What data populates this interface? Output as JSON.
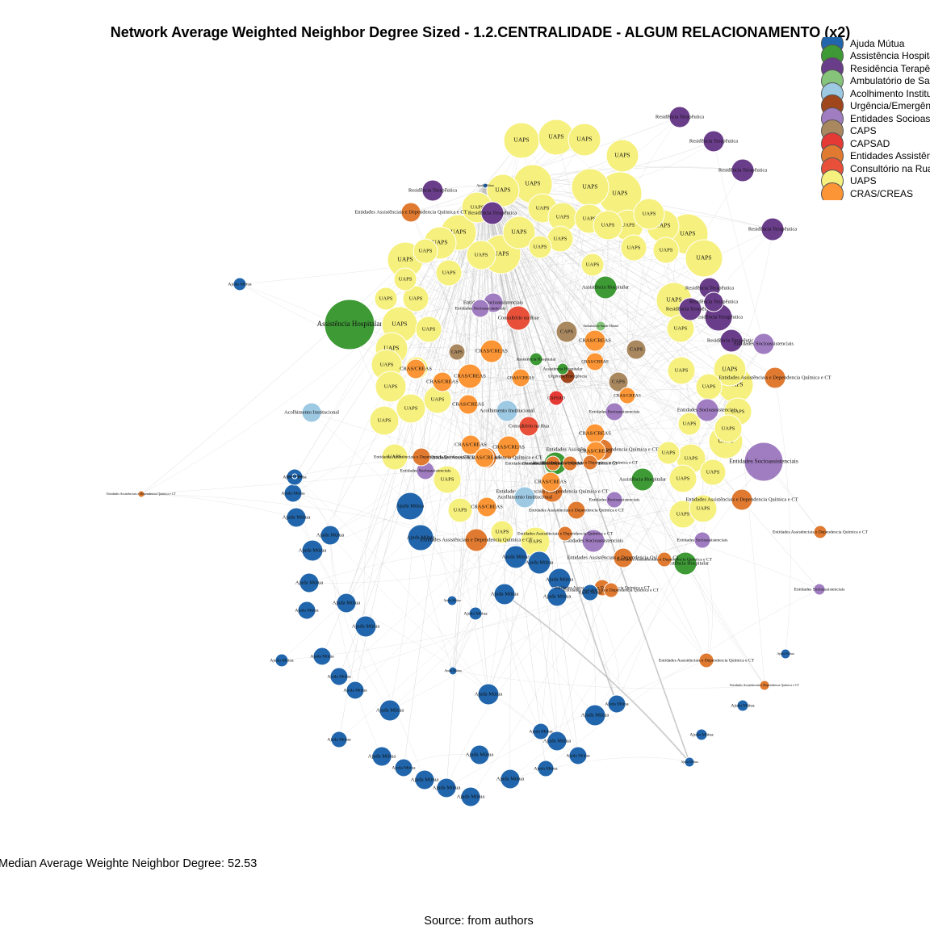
{
  "title": "Network Average Weighted Neighbor Degree Sized - 1.2.CENTRALIDADE - ALGUM RELACIONAMENTO (x2)",
  "median_text": "Median Average Weighte Neighbor Degree: 52.53",
  "source_text": "Source: from authors",
  "legend": [
    {
      "label": "Ajuda Mútua",
      "color": "#2166ac"
    },
    {
      "label": "Assistência Hospitalar",
      "color": "#3d9a35"
    },
    {
      "label": "Residência Terapêutica",
      "color": "#6a3d8a"
    },
    {
      "label": "Ambulatório de Saúde Mental",
      "color": "#86c47c"
    },
    {
      "label": "Acolhimento Institucional",
      "color": "#9ec9e2"
    },
    {
      "label": "Urgência/Emergência",
      "color": "#a0461c"
    },
    {
      "label": "Entidades Socioassistenciais",
      "color": "#a07cc0"
    },
    {
      "label": "CAPS",
      "color": "#a98860"
    },
    {
      "label": "CAPSAD",
      "color": "#e53935"
    },
    {
      "label": "Entidades Assistênciais e Dependencia Química e CT",
      "color": "#e07a30"
    },
    {
      "label": "Consultório na Rua",
      "color": "#e8503a"
    },
    {
      "label": "UAPS",
      "color": "#f6f07e"
    },
    {
      "label": "CRAS/CREAS",
      "color": "#fb9535"
    }
  ],
  "node_labels": {
    "uaps": "UAPS",
    "ajuda": "Ajuda Mútua",
    "res": "Residência Terapêutica",
    "socio": "Entidades Socioassistenciais",
    "dep": "Entidades Assistênciais e Dependencia Química e CT",
    "cras": "CRAS/CREAS",
    "caps": "CAPS",
    "capsad": "CAPSAD",
    "hosp": "Assistência Hospitalar",
    "acol": "Acolhimento Institucional",
    "rua": "Consultório na Rua",
    "urg": "Urgência/Emergência",
    "amb": "Ambulatório Saúde Mental"
  },
  "network": {
    "nodes": [
      {
        "t": "uaps",
        "lbl": "UAPS"
      },
      {
        "t": "uaps",
        "lbl": "UAPS"
      },
      {
        "t": "uaps",
        "lbl": "UAPS"
      },
      {
        "t": "uaps",
        "lbl": "UAPS"
      },
      {
        "t": "uaps",
        "lbl": "UAPS"
      },
      {
        "t": "uaps",
        "lbl": "UAPS"
      },
      {
        "t": "uaps",
        "lbl": "UAPS"
      },
      {
        "t": "uaps",
        "lbl": "UAPS"
      },
      {
        "t": "uaps",
        "lbl": "UAPS"
      },
      {
        "t": "uaps",
        "lbl": "UAPS"
      },
      {
        "t": "uaps",
        "lbl": "UAPS"
      },
      {
        "t": "uaps",
        "lbl": "UAPS"
      },
      {
        "t": "uaps",
        "lbl": "UAPS"
      },
      {
        "t": "uaps",
        "lbl": "UAPS"
      },
      {
        "t": "uaps",
        "lbl": "UAPS"
      },
      {
        "t": "uaps",
        "lbl": "UAPS"
      },
      {
        "t": "uaps",
        "lbl": "UAPS"
      },
      {
        "t": "uaps",
        "lbl": "UAPS"
      },
      {
        "t": "uaps",
        "lbl": "UAPS"
      },
      {
        "t": "uaps",
        "lbl": "UAPS"
      },
      {
        "t": "uaps",
        "lbl": "UAPS"
      },
      {
        "t": "uaps",
        "lbl": "UAPS"
      },
      {
        "t": "uaps",
        "lbl": "UAPS"
      },
      {
        "t": "uaps",
        "lbl": "UAPS"
      },
      {
        "t": "uaps",
        "lbl": "UAPS"
      },
      {
        "t": "uaps",
        "lbl": "UAPS"
      },
      {
        "t": "uaps",
        "lbl": "UAPS"
      },
      {
        "t": "uaps",
        "lbl": "UAPS"
      },
      {
        "t": "uaps",
        "lbl": "UAPS"
      },
      {
        "t": "uaps",
        "lbl": "UAPS"
      },
      {
        "t": "uaps",
        "lbl": "UAPS"
      },
      {
        "t": "uaps",
        "lbl": "UAPS"
      },
      {
        "t": "uaps",
        "lbl": "UAPS"
      },
      {
        "t": "uaps",
        "lbl": "UAPS"
      },
      {
        "t": "uaps",
        "lbl": "UAPS"
      },
      {
        "t": "uaps",
        "lbl": "UAPS"
      },
      {
        "t": "uaps",
        "lbl": "UAPS"
      },
      {
        "t": "uaps",
        "lbl": "UAPS"
      },
      {
        "t": "uaps",
        "lbl": "UAPS"
      },
      {
        "t": "uaps",
        "lbl": "UAPS"
      },
      {
        "t": "uaps",
        "lbl": "UAPS"
      },
      {
        "t": "uaps",
        "lbl": "UAPS"
      },
      {
        "t": "uaps",
        "lbl": "UAPS"
      },
      {
        "t": "uaps",
        "lbl": "UAPS"
      },
      {
        "t": "uaps",
        "lbl": "UAPS"
      },
      {
        "t": "uaps",
        "lbl": "UAPS"
      },
      {
        "t": "uaps",
        "lbl": "UAPS"
      },
      {
        "t": "uaps",
        "lbl": "UAPS"
      },
      {
        "t": "uaps",
        "lbl": "UAPS"
      },
      {
        "t": "uaps",
        "lbl": "UAPS"
      },
      {
        "t": "uaps",
        "lbl": "UAPS"
      },
      {
        "t": "uaps",
        "lbl": "UAPS"
      },
      {
        "t": "uaps",
        "lbl": "UAPS"
      },
      {
        "t": "uaps",
        "lbl": "UAPS"
      },
      {
        "t": "uaps",
        "lbl": "UAPS"
      },
      {
        "t": "uaps",
        "lbl": "UAPS"
      },
      {
        "t": "uaps",
        "lbl": "UAPS"
      },
      {
        "t": "uaps",
        "lbl": "UAPS"
      },
      {
        "t": "uaps",
        "lbl": "UAPS"
      },
      {
        "t": "uaps",
        "lbl": "UAPS"
      },
      {
        "t": "uaps",
        "lbl": "UAPS"
      },
      {
        "t": "uaps",
        "lbl": "UAPS"
      },
      {
        "t": "uaps",
        "lbl": "UAPS"
      },
      {
        "t": "uaps",
        "lbl": "UAPS"
      },
      {
        "t": "res",
        "lbl": "Residência Terapêutica"
      },
      {
        "t": "res",
        "lbl": "Residência Terapêutica"
      },
      {
        "t": "res",
        "lbl": "Residência Terapêutica"
      },
      {
        "t": "res",
        "lbl": "Residência Terapêutica"
      },
      {
        "t": "res",
        "lbl": "Residência Terapêutica"
      },
      {
        "t": "res",
        "lbl": "Residência Terapêutica"
      },
      {
        "t": "res",
        "lbl": "Residência Terapêutica"
      },
      {
        "t": "res",
        "lbl": "Residência Terapêutica"
      },
      {
        "t": "res",
        "lbl": "Residência Terapêutica"
      },
      {
        "t": "res",
        "lbl": "Residência Terapêutica"
      },
      {
        "t": "res",
        "lbl": "Residência Terapêutica"
      },
      {
        "t": "hosp",
        "lbl": "Assistência Hospitalar"
      },
      {
        "t": "hosp",
        "lbl": "Assistência Hospitalar"
      },
      {
        "t": "hosp",
        "lbl": "Assistência Hospitalar"
      },
      {
        "t": "hosp",
        "lbl": "Assistência Hospitalar"
      },
      {
        "t": "hosp",
        "lbl": "Assistência Hospitalar"
      },
      {
        "t": "hosp",
        "lbl": "Assistência Hospitalar"
      },
      {
        "t": "hosp",
        "lbl": "Assistência Hospitalar"
      },
      {
        "t": "socio",
        "lbl": "Entidades Socioassistenciais"
      },
      {
        "t": "socio",
        "lbl": "Entidades Socioassistenciais"
      },
      {
        "t": "socio",
        "lbl": "Entidades Socioassistenciais"
      },
      {
        "t": "socio",
        "lbl": "Entidades Socioassistenciais"
      },
      {
        "t": "socio",
        "lbl": "Entidades Socioassistenciais"
      },
      {
        "t": "socio",
        "lbl": "Entidades Socioassistenciais"
      },
      {
        "t": "socio",
        "lbl": "Entidades Socioassistenciais"
      },
      {
        "t": "socio",
        "lbl": "Entidades Socioassistenciais"
      },
      {
        "t": "socio",
        "lbl": "Entidades Socioassistenciais"
      },
      {
        "t": "socio",
        "lbl": "Entidades Socioassistenciais"
      },
      {
        "t": "socio",
        "lbl": "Entidades Socioassistenciais"
      },
      {
        "t": "dep",
        "lbl": "Entidades Assistênciais e Dependencia Química e CT"
      },
      {
        "t": "dep",
        "lbl": "Entidades Assistênciais e Dependencia Química e CT"
      },
      {
        "t": "dep",
        "lbl": "Entidades Assistênciais e Dependencia Química e CT"
      },
      {
        "t": "dep",
        "lbl": "Entidades Assistênciais e Dependencia Química e CT"
      },
      {
        "t": "dep",
        "lbl": "Entidades Assistênciais e Dependencia Química e CT"
      },
      {
        "t": "dep",
        "lbl": "Entidades Assistênciais e Dependencia Química e CT"
      },
      {
        "t": "dep",
        "lbl": "Entidades Assistênciais e Dependencia Química e CT"
      },
      {
        "t": "dep",
        "lbl": "Entidades Assistênciais e Dependencia Química e CT"
      },
      {
        "t": "dep",
        "lbl": "Entidades Assistênciais e Dependencia Química e CT"
      },
      {
        "t": "dep",
        "lbl": "Entidades Assistênciais e Dependencia Química e CT"
      },
      {
        "t": "dep",
        "lbl": "Entidades Assistênciais e Dependencia Química e CT"
      },
      {
        "t": "dep",
        "lbl": "Entidades Assistênciais e Dependencia Química e CT"
      },
      {
        "t": "dep",
        "lbl": "Entidades Assistênciais e Dependencia Química e CT"
      },
      {
        "t": "dep",
        "lbl": "Entidades Assistênciais e Dependencia Química e CT"
      },
      {
        "t": "dep",
        "lbl": "Entidades Assistênciais e Dependencia Química e CT"
      },
      {
        "t": "dep",
        "lbl": "Entidades Assistênciais e Dependencia Química e CT"
      },
      {
        "t": "dep",
        "lbl": "Entidades Assistênciais e Dependencia Química e CT"
      },
      {
        "t": "dep",
        "lbl": "Entidades Assistênciais e Dependencia Química e CT"
      },
      {
        "t": "dep",
        "lbl": "Entidades Assistênciais e Dependencia Química e CT"
      },
      {
        "t": "dep",
        "lbl": "Entidades Assistênciais e Dependencia Química e CT"
      },
      {
        "t": "dep",
        "lbl": "Entidades Assistênciais e Dependencia Química e CT"
      },
      {
        "t": "cras",
        "lbl": "CRAS/CREAS"
      },
      {
        "t": "cras",
        "lbl": "CRAS/CREAS"
      },
      {
        "t": "cras",
        "lbl": "CRAS/CREAS"
      },
      {
        "t": "cras",
        "lbl": "CRAS/CREAS"
      },
      {
        "t": "cras",
        "lbl": "CRAS/CREAS"
      },
      {
        "t": "cras",
        "lbl": "CRAS/CREAS"
      },
      {
        "t": "cras",
        "lbl": "CRAS/CREAS"
      },
      {
        "t": "cras",
        "lbl": "CRAS/CREAS"
      },
      {
        "t": "cras",
        "lbl": "CRAS/CREAS"
      },
      {
        "t": "cras",
        "lbl": "CRAS/CREAS"
      },
      {
        "t": "cras",
        "lbl": "CRAS/CREAS"
      },
      {
        "t": "cras",
        "lbl": "CRAS/CREAS"
      },
      {
        "t": "cras",
        "lbl": "CRAS/CREAS"
      },
      {
        "t": "cras",
        "lbl": "CRAS/CREAS"
      },
      {
        "t": "cras",
        "lbl": "CRAS/CREAS"
      },
      {
        "t": "cras",
        "lbl": "CRAS/CREAS"
      },
      {
        "t": "caps",
        "lbl": "CAPS"
      },
      {
        "t": "caps",
        "lbl": "CAPS"
      },
      {
        "t": "caps",
        "lbl": "CAPS"
      },
      {
        "t": "caps",
        "lbl": "CAPS"
      },
      {
        "t": "capsad",
        "lbl": "CAPSAD"
      },
      {
        "t": "acol",
        "lbl": "Acolhimento Institucional"
      },
      {
        "t": "acol",
        "lbl": "Acolhimento Institucional"
      },
      {
        "t": "acol",
        "lbl": "Acolhimento Institucional"
      },
      {
        "t": "rua",
        "lbl": "Consultório na Rua"
      },
      {
        "t": "rua",
        "lbl": "Consultório na Rua"
      },
      {
        "t": "urg",
        "lbl": "Urgência/Emergência"
      },
      {
        "t": "amb",
        "lbl": "Ambulatório Saúde Mental"
      },
      {
        "t": "ajuda",
        "lbl": "Ajuda Mútua"
      },
      {
        "t": "ajuda",
        "lbl": "Ajuda Mútua"
      },
      {
        "t": "ajuda",
        "lbl": "Ajuda Mútua"
      },
      {
        "t": "ajuda",
        "lbl": "Ajuda Mútua"
      },
      {
        "t": "ajuda",
        "lbl": "Ajuda Mútua"
      },
      {
        "t": "ajuda",
        "lbl": "Ajuda Mútua"
      },
      {
        "t": "ajuda",
        "lbl": "Ajuda Mútua"
      },
      {
        "t": "ajuda",
        "lbl": "Ajuda Mútua"
      },
      {
        "t": "ajuda",
        "lbl": "Ajuda Mútua"
      },
      {
        "t": "ajuda",
        "lbl": "Ajuda Mútua"
      },
      {
        "t": "ajuda",
        "lbl": "Ajuda Mútua"
      },
      {
        "t": "ajuda",
        "lbl": "Ajuda Mútua"
      },
      {
        "t": "ajuda",
        "lbl": "Ajuda Mútua"
      },
      {
        "t": "ajuda",
        "lbl": "Ajuda Mútua"
      },
      {
        "t": "ajuda",
        "lbl": "Ajuda Mútua"
      },
      {
        "t": "ajuda",
        "lbl": "Ajuda Mútua"
      },
      {
        "t": "ajuda",
        "lbl": "Ajuda Mútua"
      },
      {
        "t": "ajuda",
        "lbl": "Ajuda Mútua"
      },
      {
        "t": "ajuda",
        "lbl": "Ajuda Mútua"
      },
      {
        "t": "ajuda",
        "lbl": "Ajuda Mútua"
      },
      {
        "t": "ajuda",
        "lbl": "Ajuda Mútua"
      },
      {
        "t": "ajuda",
        "lbl": "Ajuda Mútua"
      },
      {
        "t": "ajuda",
        "lbl": "Ajuda Mútua"
      },
      {
        "t": "ajuda",
        "lbl": "Ajuda Mútua"
      },
      {
        "t": "ajuda",
        "lbl": "Ajuda Mútua"
      },
      {
        "t": "ajuda",
        "lbl": "Ajuda Mútua"
      },
      {
        "t": "ajuda",
        "lbl": "Ajuda Mútua"
      },
      {
        "t": "ajuda",
        "lbl": "Ajuda Mútua"
      },
      {
        "t": "ajuda",
        "lbl": "Ajuda Mútua"
      },
      {
        "t": "ajuda",
        "lbl": "Ajuda Mútua"
      },
      {
        "t": "ajuda",
        "lbl": "Ajuda Mútua"
      },
      {
        "t": "ajuda",
        "lbl": "Ajuda Mútua"
      },
      {
        "t": "ajuda",
        "lbl": "Ajuda Mútua"
      },
      {
        "t": "ajuda",
        "lbl": "Ajuda Mútua"
      },
      {
        "t": "ajuda",
        "lbl": "Ajuda Mútua"
      },
      {
        "t": "ajuda",
        "lbl": "Ajuda Mútua"
      },
      {
        "t": "ajuda",
        "lbl": "Ajuda Mútua"
      },
      {
        "t": "ajuda",
        "lbl": "Ajuda Mútua"
      },
      {
        "t": "ajuda",
        "lbl": "Ajuda Mútua"
      },
      {
        "t": "ajuda",
        "lbl": "Ajuda Mútua"
      },
      {
        "t": "ajuda",
        "lbl": "Ajuda Mútua"
      },
      {
        "t": "ajuda",
        "lbl": "Ajuda Mútua"
      },
      {
        "t": "ajuda",
        "lbl": "Ajuda Mútua"
      },
      {
        "t": "ajuda",
        "lbl": "Ajuda Mútua"
      },
      {
        "t": "ajuda",
        "lbl": "Ajuda Mútua"
      },
      {
        "t": "ajuda",
        "lbl": "Ajuda Mútua"
      },
      {
        "t": "ajuda",
        "lbl": "Ajuda Mútua"
      }
    ]
  }
}
